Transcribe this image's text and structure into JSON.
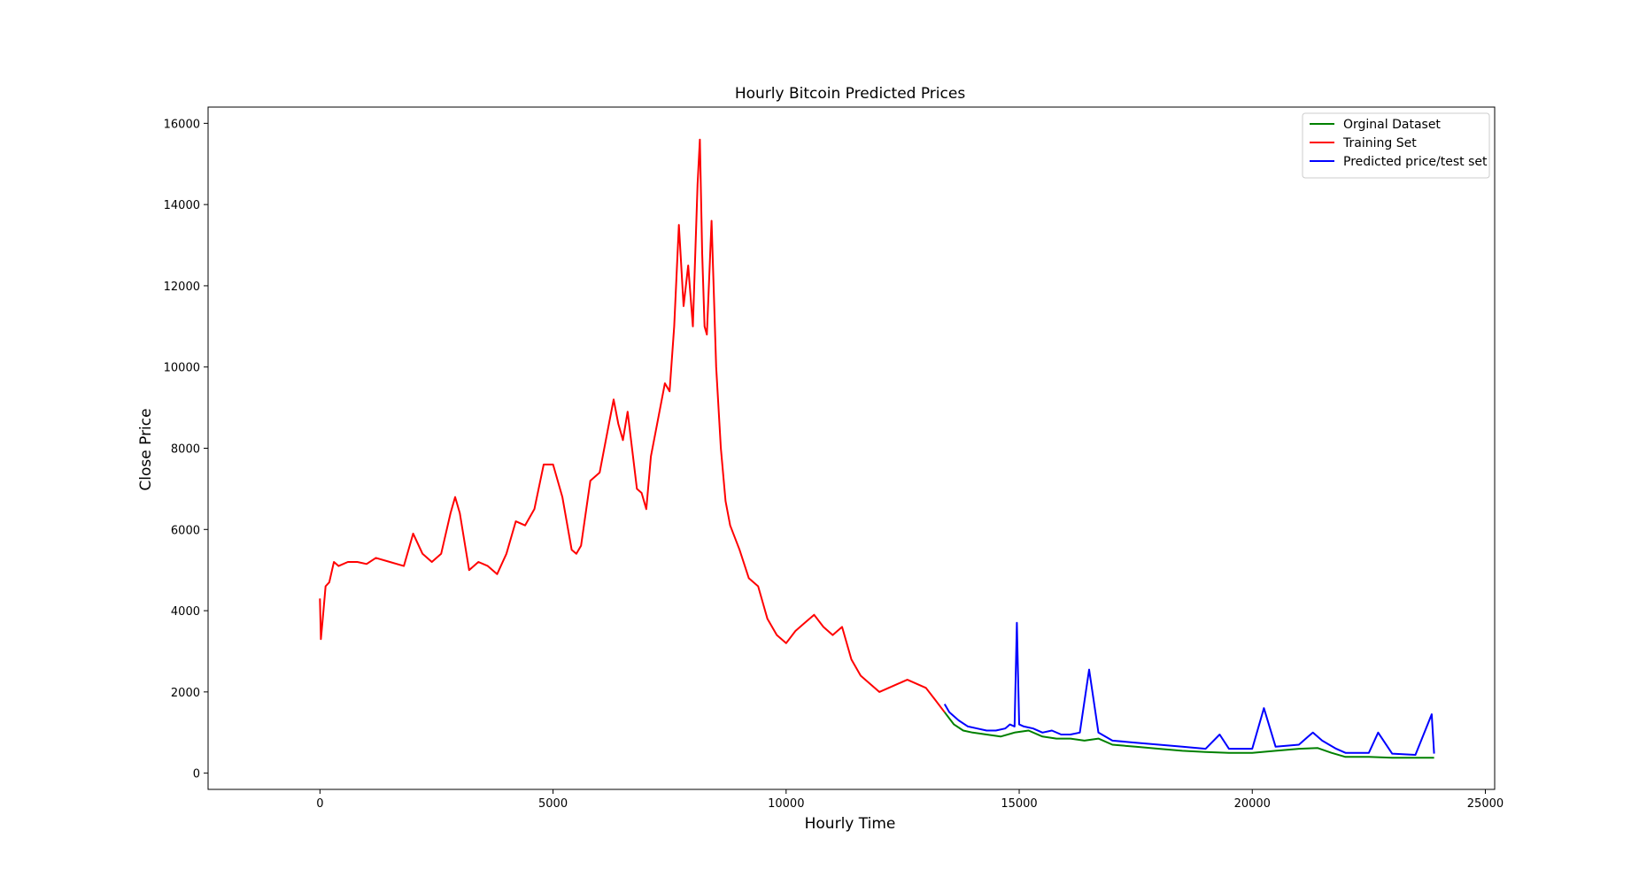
{
  "chart_data": {
    "type": "line",
    "title": "Hourly Bitcoin Predicted Prices",
    "xlabel": "Hourly Time",
    "ylabel": "Close Price",
    "xlim": [
      -2400,
      25200
    ],
    "ylim": [
      -400,
      16400
    ],
    "xticks": [
      0,
      5000,
      10000,
      15000,
      20000,
      25000
    ],
    "yticks": [
      0,
      2000,
      4000,
      6000,
      8000,
      10000,
      12000,
      14000,
      16000
    ],
    "grid": false,
    "legend_position": "top-right",
    "colors": {
      "original": "#008000",
      "training": "#ff0000",
      "predicted": "#0000ff"
    },
    "series": [
      {
        "name": "Orginal Dataset",
        "color": "#008000",
        "x": [
          13400,
          13600,
          13800,
          14000,
          14300,
          14600,
          14900,
          15200,
          15500,
          15800,
          16100,
          16400,
          16700,
          17000,
          17500,
          18000,
          18500,
          19000,
          19500,
          20000,
          20500,
          21000,
          21400,
          21700,
          22000,
          22500,
          23000,
          23500,
          23900
        ],
        "y": [
          1500,
          1200,
          1050,
          1000,
          950,
          900,
          1000,
          1050,
          900,
          850,
          850,
          800,
          850,
          700,
          650,
          600,
          550,
          520,
          500,
          500,
          550,
          600,
          620,
          500,
          400,
          400,
          380,
          380,
          380
        ]
      },
      {
        "name": "Training Set",
        "color": "#ff0000",
        "x": [
          0,
          20,
          60,
          120,
          200,
          260,
          300,
          400,
          600,
          800,
          1000,
          1200,
          1500,
          1800,
          2000,
          2200,
          2400,
          2600,
          2800,
          2900,
          3000,
          3200,
          3400,
          3600,
          3800,
          4000,
          4200,
          4400,
          4600,
          4800,
          5000,
          5200,
          5400,
          5500,
          5600,
          5800,
          6000,
          6200,
          6300,
          6400,
          6500,
          6600,
          6800,
          6900,
          7000,
          7100,
          7200,
          7400,
          7500,
          7600,
          7700,
          7800,
          7900,
          8000,
          8100,
          8150,
          8200,
          8250,
          8300,
          8400,
          8500,
          8600,
          8700,
          8800,
          9000,
          9200,
          9400,
          9600,
          9800,
          10000,
          10200,
          10400,
          10600,
          10800,
          11000,
          11200,
          11400,
          11600,
          11800,
          12000,
          12200,
          12400,
          12600,
          12800,
          13000,
          13200,
          13400
        ],
        "y": [
          4300,
          3300,
          3800,
          4600,
          4700,
          5000,
          5200,
          5100,
          5200,
          5200,
          5150,
          5300,
          5200,
          5100,
          5900,
          5400,
          5200,
          5400,
          6400,
          6800,
          6400,
          5000,
          5200,
          5100,
          4900,
          5400,
          6200,
          6100,
          6500,
          7600,
          7600,
          6800,
          5500,
          5400,
          5600,
          7200,
          7400,
          8600,
          9200,
          8600,
          8200,
          8900,
          7000,
          6900,
          6500,
          7800,
          8400,
          9600,
          9400,
          11000,
          13500,
          11500,
          12500,
          11000,
          14500,
          15600,
          12800,
          11000,
          10800,
          13600,
          10000,
          8000,
          6700,
          6100,
          5500,
          4800,
          4600,
          3800,
          3400,
          3200,
          3500,
          3700,
          3900,
          3600,
          3400,
          3600,
          2800,
          2400,
          2200,
          2000,
          2100,
          2200,
          2300,
          2200,
          2100,
          1800,
          1500
        ]
      },
      {
        "name": "Predicted price/test set",
        "color": "#0000ff",
        "x": [
          13400,
          13500,
          13700,
          13900,
          14100,
          14300,
          14500,
          14700,
          14800,
          14900,
          14950,
          15000,
          15100,
          15300,
          15500,
          15700,
          15900,
          16100,
          16300,
          16500,
          16700,
          17000,
          17500,
          18000,
          18500,
          19000,
          19300,
          19500,
          20000,
          20250,
          20500,
          21000,
          21200,
          21300,
          21500,
          21800,
          22000,
          22500,
          22700,
          23000,
          23500,
          23850,
          23900
        ],
        "y": [
          1700,
          1500,
          1300,
          1150,
          1100,
          1050,
          1050,
          1100,
          1200,
          1150,
          3700,
          1200,
          1150,
          1100,
          1000,
          1050,
          950,
          950,
          1000,
          2550,
          1000,
          800,
          750,
          700,
          650,
          600,
          950,
          600,
          600,
          1600,
          650,
          700,
          900,
          1000,
          800,
          600,
          500,
          500,
          1000,
          480,
          450,
          1450,
          480
        ]
      }
    ]
  }
}
